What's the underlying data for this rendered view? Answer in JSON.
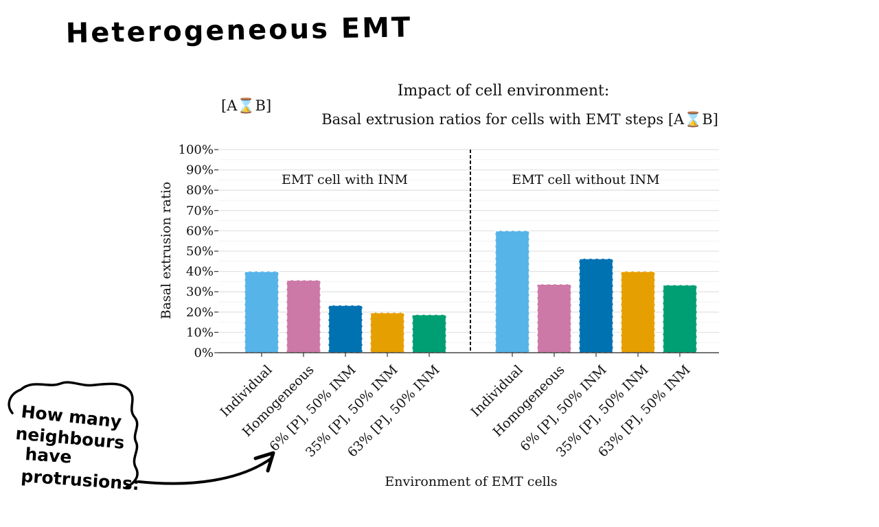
{
  "slide": {
    "heading": "Heterogeneous EMT",
    "note_lines": [
      "How many",
      "neighbours",
      "have",
      "protrusions:"
    ]
  },
  "chart_data": {
    "type": "bar",
    "title": "Impact of cell environment:",
    "subtitle": "Basal extrusion ratios for cells with EMT steps [A⌛B]",
    "corner_label": "[A⌛B]",
    "xlabel": "Environment of EMT cells",
    "ylabel": "Basal extrusion ratio",
    "ylim": [
      0,
      1
    ],
    "yticks": [
      0,
      0.1,
      0.2,
      0.3,
      0.4,
      0.5,
      0.6,
      0.7,
      0.8,
      0.9,
      1.0
    ],
    "ytick_labels": [
      "0%",
      "10%",
      "20%",
      "30%",
      "40%",
      "50%",
      "60%",
      "70%",
      "80%",
      "90%",
      "100%"
    ],
    "grid": true,
    "divider": "dashed vertical line between panels",
    "categories": [
      "Individual",
      "Homogeneous",
      "6% [P], 50% INM",
      "35% [P], 50% INM",
      "63% [P], 50% INM"
    ],
    "colors": [
      "#56B4E9",
      "#CC79A7",
      "#0072B2",
      "#E69F00",
      "#009E73"
    ],
    "panels": [
      {
        "name": "EMT cell with INM",
        "values": [
          0.4,
          0.357,
          0.233,
          0.197,
          0.187
        ]
      },
      {
        "name": "EMT cell without INM",
        "values": [
          0.6,
          0.337,
          0.463,
          0.4,
          0.333
        ]
      }
    ]
  }
}
